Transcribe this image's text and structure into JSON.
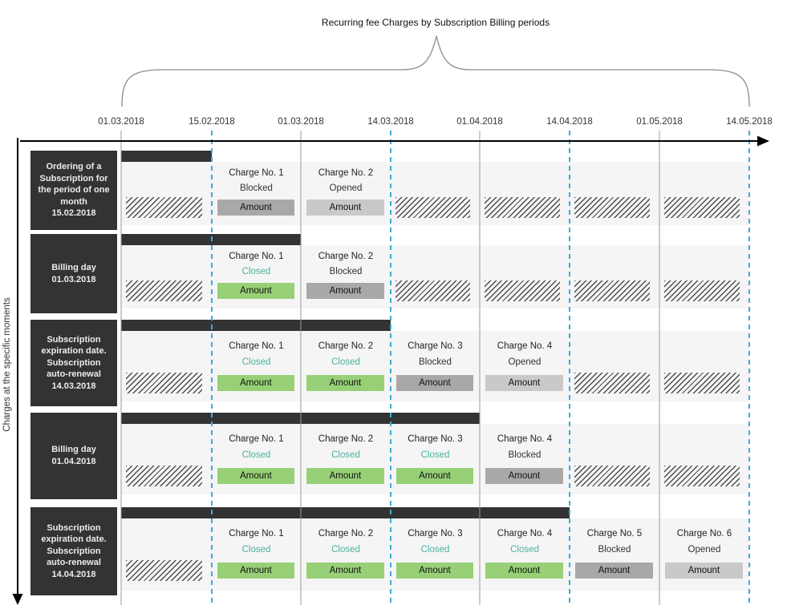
{
  "title": "Recurring fee Charges by Subscription Billing periods",
  "y_axis_label": "Charges at the specific moments",
  "timeline_dates": [
    "01.03.2018",
    "15.02.2018",
    "01.03.2018",
    "14.03.2018",
    "01.04.2018",
    "14.04.2018",
    "01.05.2018",
    "14.05.2018"
  ],
  "amount_label": "Amount",
  "colors": {
    "dark": "#333333",
    "row_bg": "#f5f5f5",
    "green": "#97d077",
    "teal": "#48b39e",
    "blocked": "#a8a8a8",
    "opened": "#c9c9c9",
    "guide_blue": "#3fa9e1",
    "guide_gray": "#9a9a9a"
  },
  "rows": [
    {
      "label_lines": [
        "Ordering of a",
        "Subscription for",
        "the period of one",
        "month",
        "15.02.2018"
      ],
      "cells": [
        {
          "type": "hatch"
        },
        {
          "type": "charge",
          "title": "Charge No. 1",
          "status": "Blocked"
        },
        {
          "type": "charge",
          "title": "Charge No. 2",
          "status": "Opened"
        },
        {
          "type": "hatch"
        },
        {
          "type": "hatch"
        },
        {
          "type": "hatch"
        },
        {
          "type": "hatch"
        }
      ]
    },
    {
      "label_lines": [
        "Billing day",
        "01.03.2018"
      ],
      "cells": [
        {
          "type": "hatch"
        },
        {
          "type": "charge",
          "title": "Charge No. 1",
          "status": "Closed"
        },
        {
          "type": "charge",
          "title": "Charge No. 2",
          "status": "Blocked"
        },
        {
          "type": "hatch"
        },
        {
          "type": "hatch"
        },
        {
          "type": "hatch"
        },
        {
          "type": "hatch"
        }
      ]
    },
    {
      "label_lines": [
        "Subscription",
        "expiration date.",
        "Subscription",
        "auto-renewal",
        "14.03.2018"
      ],
      "cells": [
        {
          "type": "hatch"
        },
        {
          "type": "charge",
          "title": "Charge No. 1",
          "status": "Closed"
        },
        {
          "type": "charge",
          "title": "Charge No. 2",
          "status": "Closed"
        },
        {
          "type": "charge",
          "title": "Charge No. 3",
          "status": "Blocked"
        },
        {
          "type": "charge",
          "title": "Charge No. 4",
          "status": "Opened"
        },
        {
          "type": "hatch"
        },
        {
          "type": "hatch"
        }
      ]
    },
    {
      "label_lines": [
        "Billing day",
        "01.04.2018"
      ],
      "cells": [
        {
          "type": "hatch"
        },
        {
          "type": "charge",
          "title": "Charge No. 1",
          "status": "Closed"
        },
        {
          "type": "charge",
          "title": "Charge No. 2",
          "status": "Closed"
        },
        {
          "type": "charge",
          "title": "Charge No. 3",
          "status": "Closed"
        },
        {
          "type": "charge",
          "title": "Charge No. 4",
          "status": "Blocked"
        },
        {
          "type": "hatch"
        },
        {
          "type": "hatch"
        }
      ]
    },
    {
      "label_lines": [
        "Subscription",
        "expiration date.",
        "Subscription",
        "auto-renewal",
        "14.04.2018"
      ],
      "cells": [
        {
          "type": "hatch"
        },
        {
          "type": "charge",
          "title": "Charge No. 1",
          "status": "Closed"
        },
        {
          "type": "charge",
          "title": "Charge No. 2",
          "status": "Closed"
        },
        {
          "type": "charge",
          "title": "Charge No. 3",
          "status": "Closed"
        },
        {
          "type": "charge",
          "title": "Charge No. 4",
          "status": "Closed"
        },
        {
          "type": "charge",
          "title": "Charge No. 5",
          "status": "Blocked"
        },
        {
          "type": "charge",
          "title": "Charge No. 6",
          "status": "Opened"
        }
      ]
    }
  ]
}
